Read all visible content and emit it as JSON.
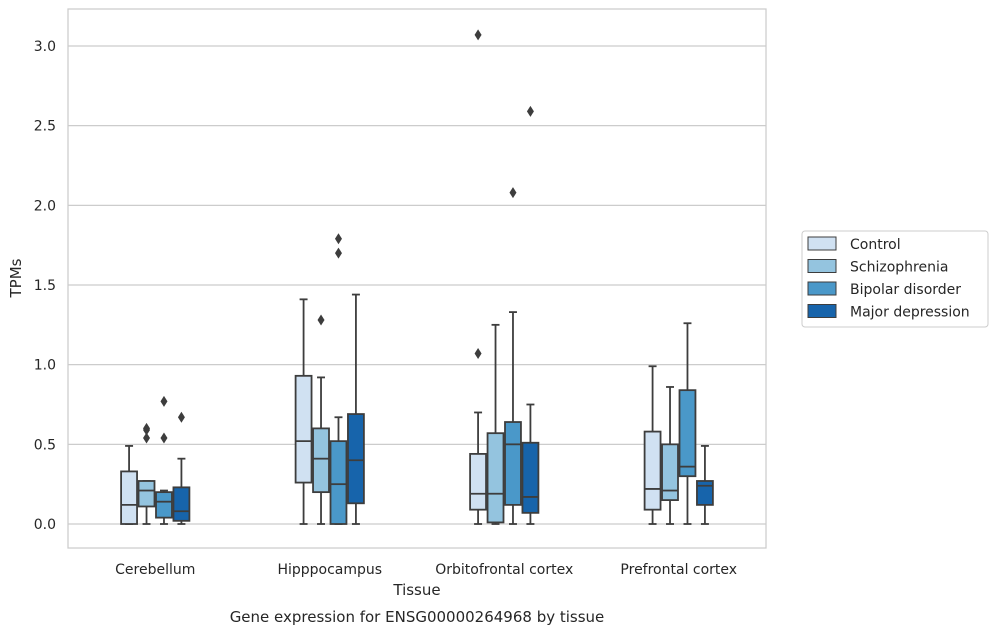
{
  "chart_data": {
    "type": "box",
    "title": "",
    "caption": "Gene expression for ENSG00000264968 by tissue",
    "xlabel": "Tissue",
    "ylabel": "TPMs",
    "ylim": [
      -0.15,
      3.22
    ],
    "yticks": [
      "0.0",
      "0.5",
      "1.0",
      "1.5",
      "2.0",
      "2.5",
      "3.0"
    ],
    "grid": "horizontal",
    "legend_position": "right",
    "categories": [
      "Cerebellum",
      "Hipppocampus",
      "Orbitofrontal cortex",
      "Prefrontal cortex"
    ],
    "series": [
      {
        "name": "Control",
        "color": "#d0e1f2",
        "boxes": [
          {
            "whislo": 0.0,
            "q1": 0.0,
            "med": 0.12,
            "q3": 0.33,
            "whishi": 0.49,
            "fliers": []
          },
          {
            "whislo": 0.0,
            "q1": 0.26,
            "med": 0.52,
            "q3": 0.93,
            "whishi": 1.41,
            "fliers": []
          },
          {
            "whislo": 0.0,
            "q1": 0.09,
            "med": 0.19,
            "q3": 0.44,
            "whishi": 0.7,
            "fliers": [
              1.07,
              3.07
            ]
          },
          {
            "whislo": 0.0,
            "q1": 0.09,
            "med": 0.22,
            "q3": 0.58,
            "whishi": 0.99,
            "fliers": []
          }
        ]
      },
      {
        "name": "Schizophrenia",
        "color": "#94c4df",
        "boxes": [
          {
            "whislo": 0.0,
            "q1": 0.11,
            "med": 0.21,
            "q3": 0.27,
            "whishi": 0.27,
            "fliers": [
              0.54,
              0.59,
              0.6
            ]
          },
          {
            "whislo": 0.0,
            "q1": 0.2,
            "med": 0.41,
            "q3": 0.6,
            "whishi": 0.92,
            "fliers": [
              1.28
            ]
          },
          {
            "whislo": 0.0,
            "q1": 0.01,
            "med": 0.19,
            "q3": 0.57,
            "whishi": 1.25,
            "fliers": []
          },
          {
            "whislo": 0.0,
            "q1": 0.15,
            "med": 0.21,
            "q3": 0.5,
            "whishi": 0.86,
            "fliers": []
          }
        ]
      },
      {
        "name": "Bipolar disorder",
        "color": "#4a98c9",
        "boxes": [
          {
            "whislo": 0.0,
            "q1": 0.04,
            "med": 0.14,
            "q3": 0.2,
            "whishi": 0.21,
            "fliers": [
              0.54,
              0.77
            ]
          },
          {
            "whislo": 0.0,
            "q1": 0.0,
            "med": 0.25,
            "q3": 0.52,
            "whishi": 0.67,
            "fliers": [
              1.7,
              1.79
            ]
          },
          {
            "whislo": 0.0,
            "q1": 0.12,
            "med": 0.5,
            "q3": 0.64,
            "whishi": 1.33,
            "fliers": [
              2.08
            ]
          },
          {
            "whislo": 0.0,
            "q1": 0.3,
            "med": 0.36,
            "q3": 0.84,
            "whishi": 1.26,
            "fliers": []
          }
        ]
      },
      {
        "name": "Major depression",
        "color": "#1764ab",
        "boxes": [
          {
            "whislo": 0.0,
            "q1": 0.02,
            "med": 0.08,
            "q3": 0.23,
            "whishi": 0.41,
            "fliers": [
              0.67
            ]
          },
          {
            "whislo": 0.0,
            "q1": 0.13,
            "med": 0.4,
            "q3": 0.69,
            "whishi": 1.44,
            "fliers": []
          },
          {
            "whislo": 0.0,
            "q1": 0.07,
            "med": 0.17,
            "q3": 0.51,
            "whishi": 0.75,
            "fliers": [
              2.59
            ]
          },
          {
            "whislo": 0.0,
            "q1": 0.12,
            "med": 0.24,
            "q3": 0.27,
            "whishi": 0.49,
            "fliers": []
          }
        ]
      }
    ]
  }
}
